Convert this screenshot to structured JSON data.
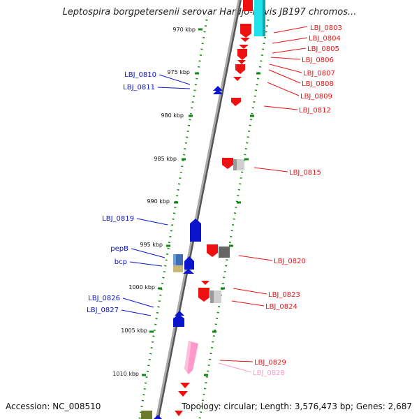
{
  "title": "Leptospira borgpetersenii serovar Hardjo-bovis JB197 chromos...",
  "accession": "Accession: NC_008510",
  "summary": "Topology: circular; Length: 3,576,473 bp; Genes: 2,687",
  "colors": {
    "red": "#ee1111",
    "blue": "#0a14cc",
    "pink": "#ff99cc",
    "cyan": "#22e0e8",
    "tick": "#118811",
    "axis": "#888888"
  },
  "kbp_labels": [
    {
      "text": "970 kbp"
    },
    {
      "text": "975 kbp"
    },
    {
      "text": "980 kbp"
    },
    {
      "text": "985 kbp"
    },
    {
      "text": "990 kbp"
    },
    {
      "text": "995 kbp"
    },
    {
      "text": "1000 kbp"
    },
    {
      "text": "1005 kbp"
    },
    {
      "text": "1010 kbp"
    }
  ],
  "left_labels": [
    {
      "text": "LBJ_0810",
      "color": "#0a14cc"
    },
    {
      "text": "LBJ_0811",
      "color": "#0a14cc"
    },
    {
      "text": "LBJ_0819",
      "color": "#0a14cc"
    },
    {
      "text": "pepB",
      "color": "#0a14cc"
    },
    {
      "text": "bcp",
      "color": "#0a14cc"
    },
    {
      "text": "LBJ_0826",
      "color": "#0a14cc"
    },
    {
      "text": "LBJ_0827",
      "color": "#0a14cc"
    }
  ],
  "right_labels": [
    {
      "text": "LBJ_0803",
      "color": "#ee1111"
    },
    {
      "text": "LBJ_0804",
      "color": "#ee1111"
    },
    {
      "text": "LBJ_0805",
      "color": "#ee1111"
    },
    {
      "text": "LBJ_0806",
      "color": "#ee1111"
    },
    {
      "text": "LBJ_0807",
      "color": "#ee1111"
    },
    {
      "text": "LBJ_0808",
      "color": "#ee1111"
    },
    {
      "text": "LBJ_0809",
      "color": "#ee1111"
    },
    {
      "text": "LBJ_0812",
      "color": "#ee1111"
    },
    {
      "text": "LBJ_0815",
      "color": "#ee1111"
    },
    {
      "text": "LBJ_0820",
      "color": "#ee1111"
    },
    {
      "text": "LBJ_0823",
      "color": "#ee1111"
    },
    {
      "text": "LBJ_0824",
      "color": "#ee1111"
    },
    {
      "text": "LBJ_0829",
      "color": "#ee1111"
    },
    {
      "text": "LBJ_0828",
      "color": "#ff99cc"
    }
  ]
}
